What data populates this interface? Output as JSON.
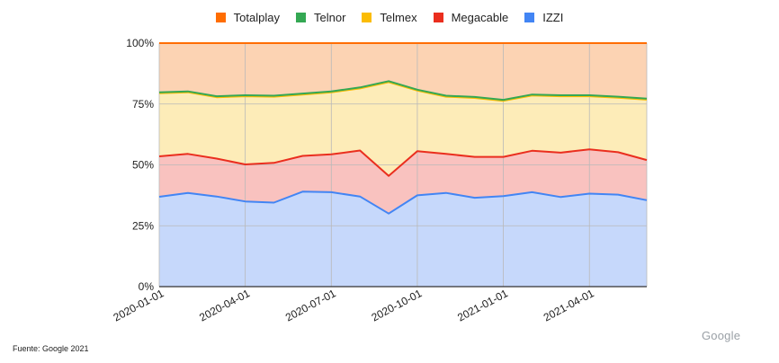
{
  "chart_data": {
    "type": "area",
    "stacked": "percent",
    "title": "",
    "xlabel": "",
    "ylabel": "",
    "ylim": [
      0,
      100
    ],
    "y_ticks": [
      "0%",
      "25%",
      "50%",
      "75%",
      "100%"
    ],
    "x_tick_labels": [
      "2020-01-01",
      "2020-04-01",
      "2020-07-01",
      "2020-10-01",
      "2021-01-01",
      "2021-04-01"
    ],
    "x_tick_indices": [
      0,
      3,
      6,
      9,
      12,
      15
    ],
    "num_points": 18,
    "grid": true,
    "legend_position": "top",
    "legend_order": [
      "Totalplay",
      "Telnor",
      "Telmex",
      "Megacable",
      "IZZI"
    ],
    "series": [
      {
        "name": "IZZI",
        "color": "#4285f4",
        "fill": "#c6d8fb",
        "values": [
          36.9,
          38.5,
          37.0,
          35.0,
          34.5,
          39.0,
          38.8,
          37.0,
          30.0,
          37.5,
          38.5,
          36.5,
          37.2,
          38.8,
          36.8,
          38.2,
          37.8,
          35.5
        ]
      },
      {
        "name": "Megacable",
        "color": "#ea2e1e",
        "fill": "#f9c2bf",
        "values": [
          16.6,
          16.0,
          15.6,
          15.2,
          16.3,
          14.7,
          15.5,
          18.9,
          15.5,
          18.1,
          16.0,
          16.8,
          16.1,
          17.0,
          18.2,
          18.2,
          17.4,
          16.5
        ]
      },
      {
        "name": "Telmex",
        "color": "#fbbc04",
        "fill": "#fdecb8",
        "values": [
          25.9,
          25.3,
          25.2,
          28.0,
          27.2,
          25.2,
          25.5,
          25.5,
          38.5,
          24.9,
          23.5,
          24.2,
          23.0,
          22.7,
          23.2,
          21.8,
          22.4,
          24.8
        ]
      },
      {
        "name": "Telnor",
        "color": "#34a853",
        "fill": "#c9e8cf",
        "values": [
          0.4,
          0.4,
          0.4,
          0.4,
          0.4,
          0.4,
          0.4,
          0.4,
          0.4,
          0.4,
          0.4,
          0.4,
          0.4,
          0.4,
          0.4,
          0.4,
          0.4,
          0.4
        ]
      },
      {
        "name": "Totalplay",
        "color": "#ff6d01",
        "fill": "#fcd3b3",
        "values": [
          20.2,
          19.8,
          21.8,
          21.4,
          21.6,
          20.7,
          19.8,
          18.2,
          15.6,
          19.1,
          21.6,
          22.1,
          23.3,
          21.1,
          21.4,
          21.4,
          22.0,
          22.8
        ]
      }
    ]
  },
  "footer": {
    "source": "Fuente: Google 2021",
    "brand": "Google"
  }
}
